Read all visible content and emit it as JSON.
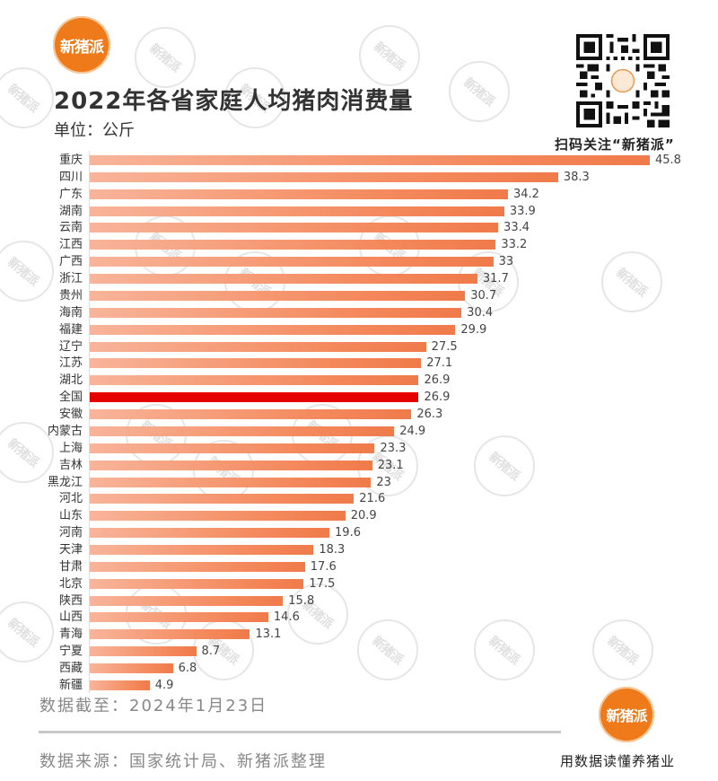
{
  "brand": {
    "logo_text": "新猪派",
    "watermark_text": "新猪派",
    "accent_color": "#ee7a1a",
    "slogan": "用数据读懂养猪业"
  },
  "qr": {
    "caption": "扫码关注“新猪派”"
  },
  "footer": {
    "as_of": "数据截至：2024年1月23日",
    "source": "数据来源：国家统计局、新猪派整理"
  },
  "chart_data": {
    "type": "bar",
    "orientation": "horizontal",
    "title": "2022年各省家庭人均猪肉消费量",
    "subtitle": "单位：公斤",
    "xlabel": "",
    "ylabel": "",
    "unit": "公斤",
    "grid": false,
    "legend": null,
    "bar_color": "#f48a5e",
    "highlight_color": "#e60000",
    "highlight_category": "全国",
    "xlim": [
      0,
      45.8
    ],
    "categories": [
      "重庆",
      "四川",
      "广东",
      "湖南",
      "云南",
      "江西",
      "广西",
      "浙江",
      "贵州",
      "海南",
      "福建",
      "辽宁",
      "江苏",
      "湖北",
      "全国",
      "安徽",
      "内蒙古",
      "上海",
      "吉林",
      "黑龙江",
      "河北",
      "山东",
      "河南",
      "天津",
      "甘肃",
      "北京",
      "陕西",
      "山西",
      "青海",
      "宁夏",
      "西藏",
      "新疆"
    ],
    "values": [
      45.8,
      38.3,
      34.2,
      33.9,
      33.4,
      33.2,
      33,
      31.7,
      30.7,
      30.4,
      29.9,
      27.5,
      27.1,
      26.9,
      26.9,
      26.3,
      24.9,
      23.3,
      23.1,
      23,
      21.6,
      20.9,
      19.6,
      18.3,
      17.6,
      17.5,
      15.8,
      14.6,
      13.1,
      8.7,
      6.8,
      4.9
    ],
    "value_labels": [
      "45.8",
      "38.3",
      "34.2",
      "33.9",
      "33.4",
      "33.2",
      "33",
      "31.7",
      "30.7",
      "30.4",
      "29.9",
      "27.5",
      "27.1",
      "26.9",
      "26.9",
      "26.3",
      "24.9",
      "23.3",
      "23.1",
      "23",
      "21.6",
      "20.9",
      "19.6",
      "18.3",
      "17.6",
      "17.5",
      "15.8",
      "14.6",
      "13.1",
      "8.7",
      "6.8",
      "4.9"
    ]
  }
}
